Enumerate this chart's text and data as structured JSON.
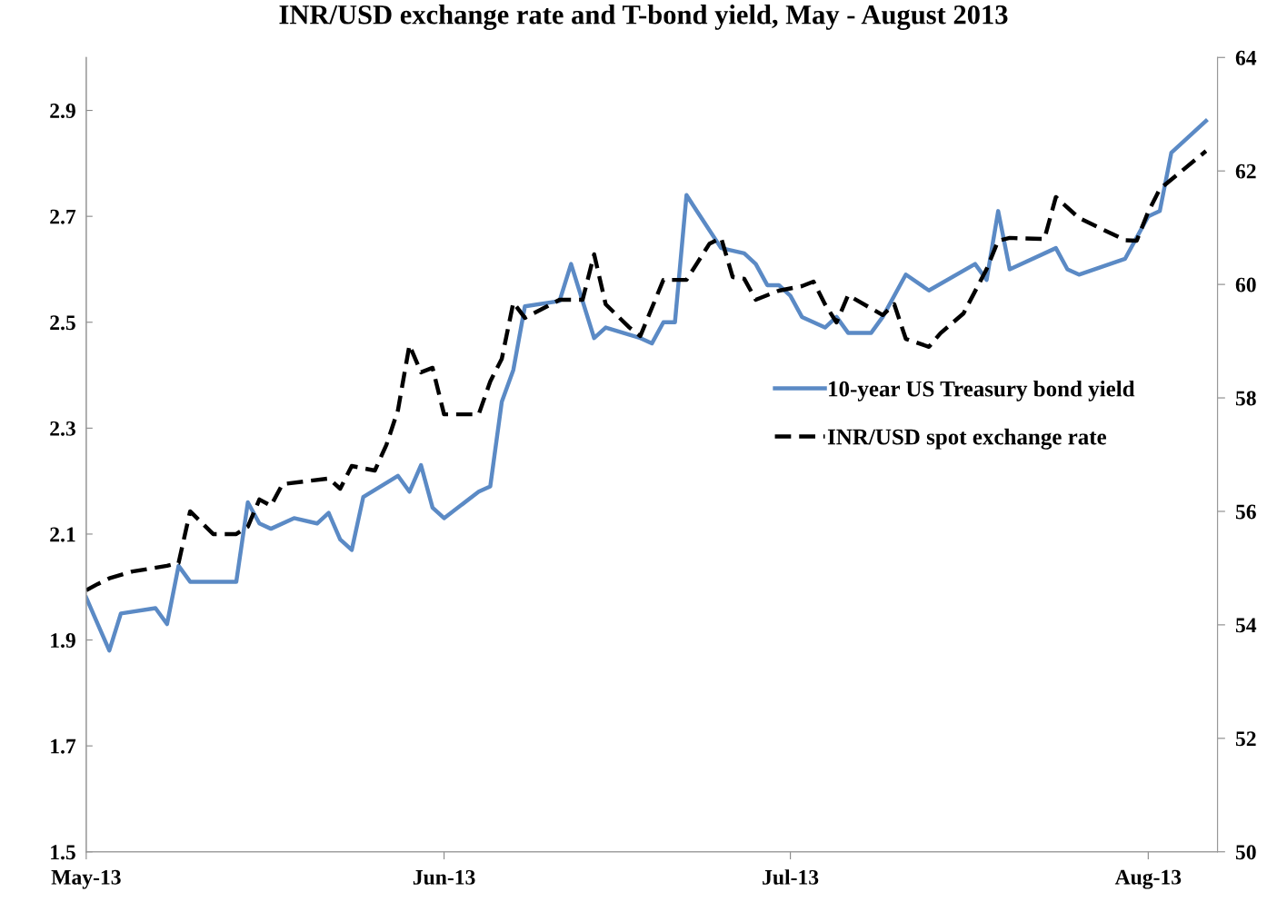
{
  "chart_data": {
    "type": "line",
    "title": "INR/USD exchange rate and T-bond yield, May - August 2013",
    "xlim": [
      "2013-05-01",
      "2013-08-07"
    ],
    "xticks": [
      {
        "value": "2013-05-01",
        "label": "May-13"
      },
      {
        "value": "2013-06-01",
        "label": "Jun-13"
      },
      {
        "value": "2013-07-01",
        "label": "Jul-13"
      },
      {
        "value": "2013-08-01",
        "label": "Aug-13"
      }
    ],
    "ylim": [
      1.5,
      3.0
    ],
    "yticks": [
      1.5,
      1.7,
      1.9,
      2.1,
      2.3,
      2.5,
      2.7,
      2.9
    ],
    "y2lim": [
      50,
      64
    ],
    "y2ticks": [
      50,
      52,
      54,
      56,
      58,
      60,
      62,
      64
    ],
    "grid": false,
    "legend": "right",
    "marker": "none",
    "series": [
      {
        "name": "10-year US Treasury bond yield",
        "color": "#5b8ac5",
        "line_style": "solid",
        "axis": "y",
        "x": [
          "2013-05-01",
          "2013-05-02",
          "2013-05-03",
          "2013-05-04",
          "2013-05-07",
          "2013-05-08",
          "2013-05-09",
          "2013-05-10",
          "2013-05-12",
          "2013-05-14",
          "2013-05-15",
          "2013-05-16",
          "2013-05-17",
          "2013-05-19",
          "2013-05-21",
          "2013-05-22",
          "2013-05-23",
          "2013-05-24",
          "2013-05-25",
          "2013-05-28",
          "2013-05-29",
          "2013-05-30",
          "2013-05-31",
          "2013-06-01",
          "2013-06-04",
          "2013-06-05",
          "2013-06-06",
          "2013-06-07",
          "2013-06-08",
          "2013-06-11",
          "2013-06-12",
          "2013-06-14",
          "2013-06-15",
          "2013-06-18",
          "2013-06-19",
          "2013-06-20",
          "2013-06-21",
          "2013-06-22",
          "2013-06-25",
          "2013-06-27",
          "2013-06-28",
          "2013-06-29",
          "2013-06-30",
          "2013-07-01",
          "2013-07-02",
          "2013-07-04",
          "2013-07-05",
          "2013-07-06",
          "2013-07-08",
          "2013-07-09",
          "2013-07-11",
          "2013-07-13",
          "2013-07-17",
          "2013-07-18",
          "2013-07-19",
          "2013-07-20",
          "2013-07-24",
          "2013-07-25",
          "2013-07-26",
          "2013-07-30",
          "2013-08-01",
          "2013-08-02",
          "2013-08-03",
          "2013-08-06"
        ],
        "values": [
          1.98,
          1.93,
          1.88,
          1.95,
          1.96,
          1.93,
          2.04,
          2.01,
          2.01,
          2.01,
          2.16,
          2.12,
          2.11,
          2.13,
          2.12,
          2.14,
          2.09,
          2.07,
          2.17,
          2.21,
          2.18,
          2.23,
          2.15,
          2.13,
          2.18,
          2.19,
          2.35,
          2.41,
          2.53,
          2.54,
          2.61,
          2.47,
          2.49,
          2.47,
          2.46,
          2.5,
          2.5,
          2.74,
          2.64,
          2.63,
          2.61,
          2.57,
          2.57,
          2.55,
          2.51,
          2.49,
          2.51,
          2.48,
          2.48,
          2.51,
          2.59,
          2.56,
          2.61,
          2.58,
          2.71,
          2.6,
          2.64,
          2.6,
          2.59,
          2.62,
          2.7,
          2.71,
          2.82,
          2.88
        ]
      },
      {
        "name": "INR/USD spot exchange rate",
        "color": "#000000",
        "line_style": "dashed",
        "axis": "y2",
        "x": [
          "2013-05-01",
          "2013-05-02",
          "2013-05-03",
          "2013-05-05",
          "2013-05-08",
          "2013-05-09",
          "2013-05-10",
          "2013-05-12",
          "2013-05-14",
          "2013-05-15",
          "2013-05-16",
          "2013-05-17",
          "2013-05-18",
          "2013-05-22",
          "2013-05-23",
          "2013-05-24",
          "2013-05-26",
          "2013-05-27",
          "2013-05-28",
          "2013-05-29",
          "2013-05-30",
          "2013-05-31",
          "2013-06-01",
          "2013-06-04",
          "2013-06-05",
          "2013-06-06",
          "2013-06-07",
          "2013-06-08",
          "2013-06-10",
          "2013-06-11",
          "2013-06-13",
          "2013-06-14",
          "2013-06-15",
          "2013-06-17",
          "2013-06-18",
          "2013-06-20",
          "2013-06-22",
          "2013-06-24",
          "2013-06-25",
          "2013-06-26",
          "2013-06-27",
          "2013-06-28",
          "2013-06-30",
          "2013-07-02",
          "2013-07-03",
          "2013-07-04",
          "2013-07-05",
          "2013-07-06",
          "2013-07-09",
          "2013-07-10",
          "2013-07-11",
          "2013-07-13",
          "2013-07-14",
          "2013-07-16",
          "2013-07-18",
          "2013-07-19",
          "2013-07-20",
          "2013-07-23",
          "2013-07-24",
          "2013-07-26",
          "2013-07-30",
          "2013-07-31",
          "2013-08-01",
          "2013-08-02",
          "2013-08-06"
        ],
        "values": [
          54.61,
          54.72,
          54.82,
          54.94,
          55.04,
          55.09,
          56.0,
          55.6,
          55.6,
          55.73,
          56.21,
          56.1,
          56.48,
          56.58,
          56.4,
          56.8,
          56.72,
          57.17,
          57.78,
          58.93,
          58.45,
          58.53,
          57.71,
          57.71,
          58.29,
          58.69,
          59.68,
          59.41,
          59.62,
          59.73,
          59.73,
          60.53,
          59.65,
          59.25,
          59.09,
          60.08,
          60.08,
          60.72,
          60.82,
          60.13,
          60.1,
          59.73,
          59.89,
          59.97,
          60.05,
          59.65,
          59.33,
          59.81,
          59.46,
          59.65,
          59.04,
          58.9,
          59.14,
          59.49,
          60.27,
          60.77,
          60.82,
          60.8,
          61.54,
          61.17,
          60.78,
          60.77,
          61.28,
          61.68,
          62.35
        ]
      }
    ]
  }
}
